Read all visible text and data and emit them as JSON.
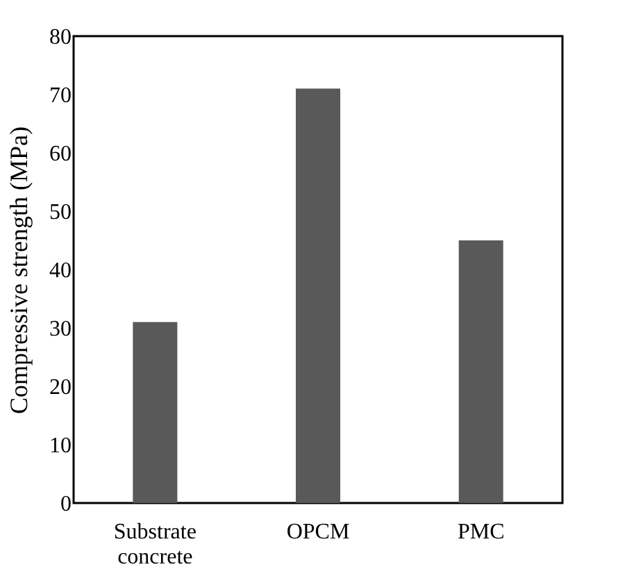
{
  "chart_data": {
    "type": "bar",
    "ylabel": "Compressive strength (MPa)",
    "categories": [
      "Substrate concrete",
      "OPCM",
      "PMC"
    ],
    "values": [
      31,
      71,
      45
    ],
    "color": "#595959",
    "ylim": [
      0,
      80
    ],
    "yticks": [
      0,
      10,
      20,
      30,
      40,
      50,
      60,
      70,
      80
    ],
    "grid": false
  }
}
